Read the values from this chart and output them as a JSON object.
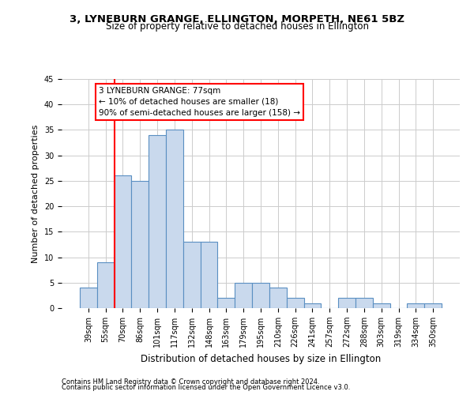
{
  "title1": "3, LYNEBURN GRANGE, ELLINGTON, MORPETH, NE61 5BZ",
  "title2": "Size of property relative to detached houses in Ellington",
  "xlabel": "Distribution of detached houses by size in Ellington",
  "ylabel": "Number of detached properties",
  "categories": [
    "39sqm",
    "55sqm",
    "70sqm",
    "86sqm",
    "101sqm",
    "117sqm",
    "132sqm",
    "148sqm",
    "163sqm",
    "179sqm",
    "195sqm",
    "210sqm",
    "226sqm",
    "241sqm",
    "257sqm",
    "272sqm",
    "288sqm",
    "303sqm",
    "319sqm",
    "334sqm",
    "350sqm"
  ],
  "values": [
    4,
    9,
    26,
    25,
    34,
    35,
    13,
    13,
    2,
    5,
    5,
    4,
    2,
    1,
    0,
    2,
    2,
    1,
    0,
    1,
    1
  ],
  "bar_color": "#c9d9ed",
  "bar_edge_color": "#5a8fc2",
  "red_line_index": 2,
  "annotation_text": "3 LYNEBURN GRANGE: 77sqm\n← 10% of detached houses are smaller (18)\n90% of semi-detached houses are larger (158) →",
  "annotation_box_color": "white",
  "annotation_box_edge": "red",
  "ylim": [
    0,
    45
  ],
  "yticks": [
    0,
    5,
    10,
    15,
    20,
    25,
    30,
    35,
    40,
    45
  ],
  "footer1": "Contains HM Land Registry data © Crown copyright and database right 2024.",
  "footer2": "Contains public sector information licensed under the Open Government Licence v3.0.",
  "background_color": "white",
  "grid_color": "#cccccc",
  "title1_fontsize": 9.5,
  "title2_fontsize": 8.5,
  "ylabel_fontsize": 8,
  "xlabel_fontsize": 8.5,
  "tick_fontsize": 7,
  "footer_fontsize": 6,
  "annot_fontsize": 7.5
}
